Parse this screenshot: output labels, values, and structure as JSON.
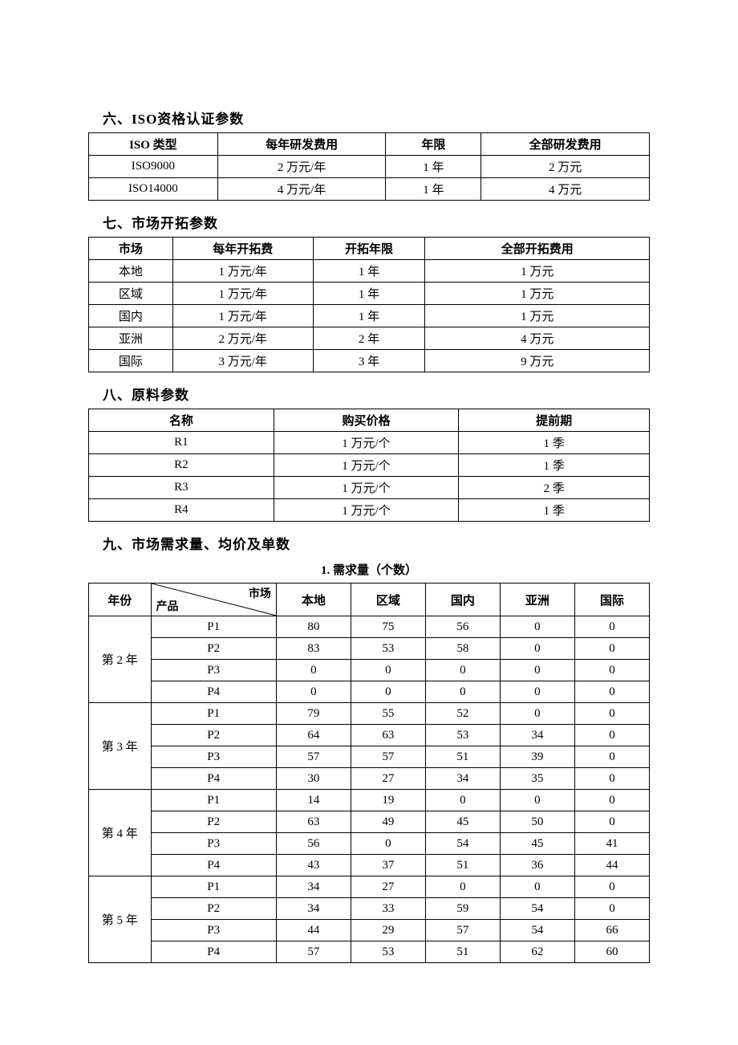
{
  "section6": {
    "title": "六、ISO资格认证参数",
    "headers": [
      "ISO 类型",
      "每年研发费用",
      "年限",
      "全部研发费用"
    ],
    "rows": [
      [
        "ISO9000",
        "2 万元/年",
        "1 年",
        "2 万元"
      ],
      [
        "ISO14000",
        "4 万元/年",
        "1 年",
        "4 万元"
      ]
    ]
  },
  "section7": {
    "title": "七、市场开拓参数",
    "headers": [
      "市场",
      "每年开拓费",
      "开拓年限",
      "全部开拓费用"
    ],
    "rows": [
      [
        "本地",
        "1 万元/年",
        "1 年",
        "1 万元"
      ],
      [
        "区域",
        "1 万元/年",
        "1 年",
        "1 万元"
      ],
      [
        "国内",
        "1 万元/年",
        "1 年",
        "1 万元"
      ],
      [
        "亚洲",
        "2 万元/年",
        "2 年",
        "4 万元"
      ],
      [
        "国际",
        "3 万元/年",
        "3 年",
        "9 万元"
      ]
    ]
  },
  "section8": {
    "title": "八、原料参数",
    "headers": [
      "名称",
      "购买价格",
      "提前期"
    ],
    "rows": [
      [
        "R1",
        "1 万元/个",
        "1 季"
      ],
      [
        "R2",
        "1 万元/个",
        "1 季"
      ],
      [
        "R3",
        "1 万元/个",
        "2 季"
      ],
      [
        "R4",
        "1 万元/个",
        "1 季"
      ]
    ]
  },
  "section9": {
    "title": "九、市场需求量、均价及单数",
    "subtitle": "1. 需求量（个数）",
    "yearHeader": "年份",
    "diagTop": "市场",
    "diagBot": "产品",
    "marketHeaders": [
      "本地",
      "区域",
      "国内",
      "亚洲",
      "国际"
    ],
    "years": [
      {
        "label": "第 2 年",
        "rows": [
          [
            "P1",
            "80",
            "75",
            "56",
            "0",
            "0"
          ],
          [
            "P2",
            "83",
            "53",
            "58",
            "0",
            "0"
          ],
          [
            "P3",
            "0",
            "0",
            "0",
            "0",
            "0"
          ],
          [
            "P4",
            "0",
            "0",
            "0",
            "0",
            "0"
          ]
        ]
      },
      {
        "label": "第 3 年",
        "rows": [
          [
            "P1",
            "79",
            "55",
            "52",
            "0",
            "0"
          ],
          [
            "P2",
            "64",
            "63",
            "53",
            "34",
            "0"
          ],
          [
            "P3",
            "57",
            "57",
            "51",
            "39",
            "0"
          ],
          [
            "P4",
            "30",
            "27",
            "34",
            "35",
            "0"
          ]
        ]
      },
      {
        "label": "第 4 年",
        "rows": [
          [
            "P1",
            "14",
            "19",
            "0",
            "0",
            "0"
          ],
          [
            "P2",
            "63",
            "49",
            "45",
            "50",
            "0"
          ],
          [
            "P3",
            "56",
            "0",
            "54",
            "45",
            "41"
          ],
          [
            "P4",
            "43",
            "37",
            "51",
            "36",
            "44"
          ]
        ]
      },
      {
        "label": "第 5 年",
        "rows": [
          [
            "P1",
            "34",
            "27",
            "0",
            "0",
            "0"
          ],
          [
            "P2",
            "34",
            "33",
            "59",
            "54",
            "0"
          ],
          [
            "P3",
            "44",
            "29",
            "57",
            "54",
            "66"
          ],
          [
            "P4",
            "57",
            "53",
            "51",
            "62",
            "60"
          ]
        ]
      }
    ]
  }
}
